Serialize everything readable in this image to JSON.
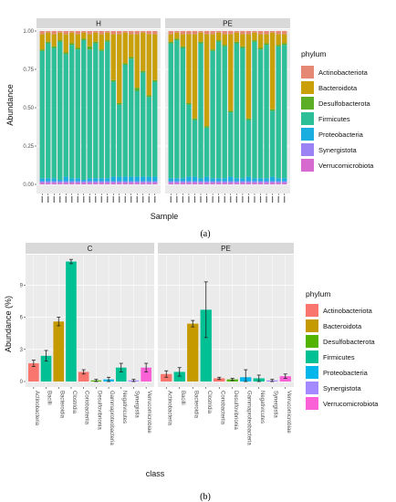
{
  "figure_a": {
    "panel_label": "(a)",
    "chart_data": {
      "type": "bar",
      "stacked": true,
      "facets": [
        "H",
        "PE"
      ],
      "xlabel": "Sample",
      "ylabel": "Abundance",
      "yticks": [
        "0.00",
        "0.25",
        "0.50",
        "0.75",
        "1.00"
      ],
      "ylim": [
        0,
        1
      ],
      "legend_title": "phylum",
      "legend_position": "right",
      "grid": true,
      "phyla": [
        "Actinobacteriota",
        "Bacteroidota",
        "Desulfobacterota",
        "Firmicutes",
        "Proteobacteria",
        "Synergistota",
        "Verrucomicrobiota"
      ],
      "colors": [
        "#E58874",
        "#C9A009",
        "#5BAE25",
        "#2DBF97",
        "#1AAEE0",
        "#9C83F5",
        "#D76ACF"
      ],
      "H_samples": [
        [
          0.02,
          0.1,
          0.01,
          0.83,
          0.02,
          0.01,
          0.01
        ],
        [
          0.01,
          0.06,
          0.01,
          0.88,
          0.02,
          0.01,
          0.01
        ],
        [
          0.02,
          0.08,
          0.01,
          0.85,
          0.02,
          0.01,
          0.01
        ],
        [
          0.01,
          0.05,
          0.01,
          0.9,
          0.01,
          0.01,
          0.01
        ],
        [
          0.02,
          0.12,
          0.01,
          0.8,
          0.03,
          0.01,
          0.01
        ],
        [
          0.01,
          0.07,
          0.01,
          0.87,
          0.02,
          0.01,
          0.01
        ],
        [
          0.02,
          0.09,
          0.01,
          0.84,
          0.02,
          0.01,
          0.01
        ],
        [
          0.01,
          0.04,
          0.01,
          0.91,
          0.01,
          0.01,
          0.01
        ],
        [
          0.02,
          0.08,
          0.02,
          0.84,
          0.02,
          0.01,
          0.01
        ],
        [
          0.01,
          0.06,
          0.01,
          0.88,
          0.02,
          0.01,
          0.01
        ],
        [
          0.02,
          0.1,
          0.01,
          0.83,
          0.02,
          0.01,
          0.01
        ],
        [
          0.01,
          0.05,
          0.01,
          0.89,
          0.02,
          0.01,
          0.01
        ],
        [
          0.02,
          0.3,
          0.01,
          0.62,
          0.03,
          0.01,
          0.01
        ],
        [
          0.02,
          0.45,
          0.01,
          0.47,
          0.03,
          0.01,
          0.01
        ],
        [
          0.01,
          0.2,
          0.01,
          0.73,
          0.03,
          0.01,
          0.01
        ],
        [
          0.02,
          0.15,
          0.01,
          0.77,
          0.03,
          0.01,
          0.01
        ],
        [
          0.02,
          0.35,
          0.02,
          0.56,
          0.03,
          0.01,
          0.01
        ],
        [
          0.01,
          0.25,
          0.01,
          0.68,
          0.03,
          0.01,
          0.01
        ],
        [
          0.02,
          0.4,
          0.01,
          0.52,
          0.03,
          0.01,
          0.01
        ],
        [
          0.02,
          0.3,
          0.01,
          0.62,
          0.03,
          0.01,
          0.01
        ]
      ],
      "PE_samples": [
        [
          0.02,
          0.05,
          0.01,
          0.88,
          0.02,
          0.01,
          0.01
        ],
        [
          0.01,
          0.04,
          0.01,
          0.9,
          0.02,
          0.01,
          0.01
        ],
        [
          0.02,
          0.08,
          0.01,
          0.85,
          0.02,
          0.01,
          0.01
        ],
        [
          0.02,
          0.45,
          0.01,
          0.47,
          0.03,
          0.01,
          0.01
        ],
        [
          0.02,
          0.55,
          0.01,
          0.37,
          0.03,
          0.01,
          0.01
        ],
        [
          0.01,
          0.06,
          0.01,
          0.88,
          0.02,
          0.01,
          0.01
        ],
        [
          0.02,
          0.6,
          0.01,
          0.32,
          0.03,
          0.01,
          0.01
        ],
        [
          0.02,
          0.1,
          0.01,
          0.83,
          0.02,
          0.01,
          0.01
        ],
        [
          0.01,
          0.05,
          0.01,
          0.89,
          0.02,
          0.01,
          0.01
        ],
        [
          0.02,
          0.07,
          0.01,
          0.86,
          0.02,
          0.01,
          0.01
        ],
        [
          0.02,
          0.5,
          0.01,
          0.42,
          0.03,
          0.01,
          0.01
        ],
        [
          0.01,
          0.06,
          0.01,
          0.88,
          0.02,
          0.01,
          0.01
        ],
        [
          0.02,
          0.08,
          0.01,
          0.85,
          0.02,
          0.01,
          0.01
        ],
        [
          0.02,
          0.55,
          0.01,
          0.37,
          0.03,
          0.01,
          0.01
        ],
        [
          0.01,
          0.05,
          0.01,
          0.89,
          0.02,
          0.01,
          0.01
        ],
        [
          0.02,
          0.09,
          0.01,
          0.84,
          0.02,
          0.01,
          0.01
        ],
        [
          0.02,
          0.06,
          0.01,
          0.87,
          0.02,
          0.01,
          0.01
        ],
        [
          0.01,
          0.5,
          0.01,
          0.43,
          0.03,
          0.01,
          0.01
        ],
        [
          0.02,
          0.07,
          0.01,
          0.86,
          0.02,
          0.01,
          0.01
        ],
        [
          0.02,
          0.06,
          0.01,
          0.87,
          0.02,
          0.01,
          0.01
        ]
      ]
    }
  },
  "figure_b": {
    "panel_label": "(b)",
    "chart_data": {
      "type": "bar",
      "facets": [
        "C",
        "PE"
      ],
      "xlabel": "class",
      "ylabel": "Abundance (%)",
      "yticks": [
        "0",
        "3",
        "6",
        "9"
      ],
      "ylim": [
        0,
        11.5
      ],
      "legend_title": "phylum",
      "legend_position": "right",
      "grid": true,
      "categories": [
        "Actinobacteria",
        "Bacilli",
        "Bacteroidia",
        "Clostridia",
        "Coriobacteriia",
        "Desulfovibrionia",
        "Gammaproteobacteria",
        "Negativicutes",
        "Synergistia",
        "Verrucomicrobiae"
      ],
      "category_phylum": [
        "Actinobacteriota",
        "Firmicutes",
        "Bacteroidota",
        "Firmicutes",
        "Actinobacteriota",
        "Desulfobacterota",
        "Proteobacteria",
        "Firmicutes",
        "Synergistota",
        "Verrucomicrobiota"
      ],
      "phyla": [
        "Actinobacteriota",
        "Bacteroidota",
        "Desulfobacterota",
        "Firmicutes",
        "Proteobacteria",
        "Synergistota",
        "Verrucomicrobiota"
      ],
      "colors": [
        "#F8766D",
        "#C49A00",
        "#53B400",
        "#00C094",
        "#00B6EB",
        "#A58AFF",
        "#FB61D7"
      ],
      "series": [
        {
          "name": "C",
          "values": [
            1.7,
            2.4,
            5.6,
            11.2,
            0.9,
            0.1,
            0.2,
            1.3,
            0.1,
            1.3
          ],
          "errors": [
            0.3,
            0.5,
            0.4,
            0.2,
            0.2,
            0.1,
            0.2,
            0.4,
            0.1,
            0.4
          ]
        },
        {
          "name": "PE",
          "values": [
            0.7,
            0.9,
            5.4,
            6.7,
            0.3,
            0.2,
            0.4,
            0.3,
            0.1,
            0.5
          ],
          "errors": [
            0.3,
            0.4,
            0.3,
            2.6,
            0.1,
            0.1,
            0.7,
            0.3,
            0.1,
            0.2
          ]
        }
      ]
    }
  }
}
